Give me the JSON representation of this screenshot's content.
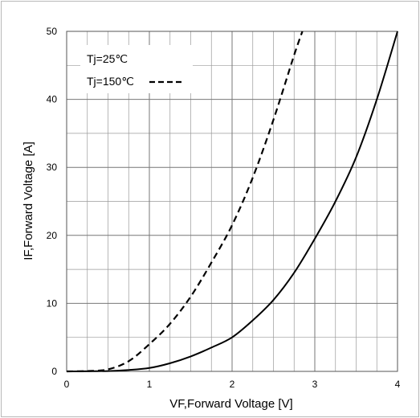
{
  "chart_data": {
    "type": "line",
    "title": "",
    "xlabel": "VF,Forward Voltage [V]",
    "ylabel": "IF,Forward Voltage [A]",
    "xlim": [
      0,
      4
    ],
    "ylim": [
      0,
      50
    ],
    "xticks": [
      0,
      1,
      2,
      3,
      4
    ],
    "yticks": [
      0,
      10,
      20,
      30,
      40,
      50
    ],
    "x_minor_step": 0.25,
    "y_minor_step": 5,
    "grid": true,
    "legend_position": "top-left",
    "series": [
      {
        "name": "Tj=25℃",
        "style": "solid",
        "color": "#000000",
        "x": [
          0,
          0.5,
          0.75,
          1.0,
          1.25,
          1.5,
          1.75,
          2.0,
          2.25,
          2.5,
          2.75,
          3.0,
          3.25,
          3.5,
          3.75,
          4.0
        ],
        "y": [
          0,
          0.05,
          0.2,
          0.5,
          1.2,
          2.2,
          3.5,
          5.0,
          7.5,
          10.5,
          14.5,
          19.5,
          25.0,
          31.5,
          40.0,
          50.0
        ]
      },
      {
        "name": "Tj=150℃",
        "style": "dashed",
        "color": "#000000",
        "x": [
          0,
          0.25,
          0.5,
          0.75,
          1.0,
          1.25,
          1.5,
          1.75,
          2.0,
          2.25,
          2.5,
          2.75,
          2.85
        ],
        "y": [
          0,
          0.05,
          0.3,
          1.5,
          4.0,
          7.0,
          11.0,
          16.0,
          21.5,
          28.5,
          37.0,
          46.5,
          50.0
        ]
      }
    ]
  }
}
